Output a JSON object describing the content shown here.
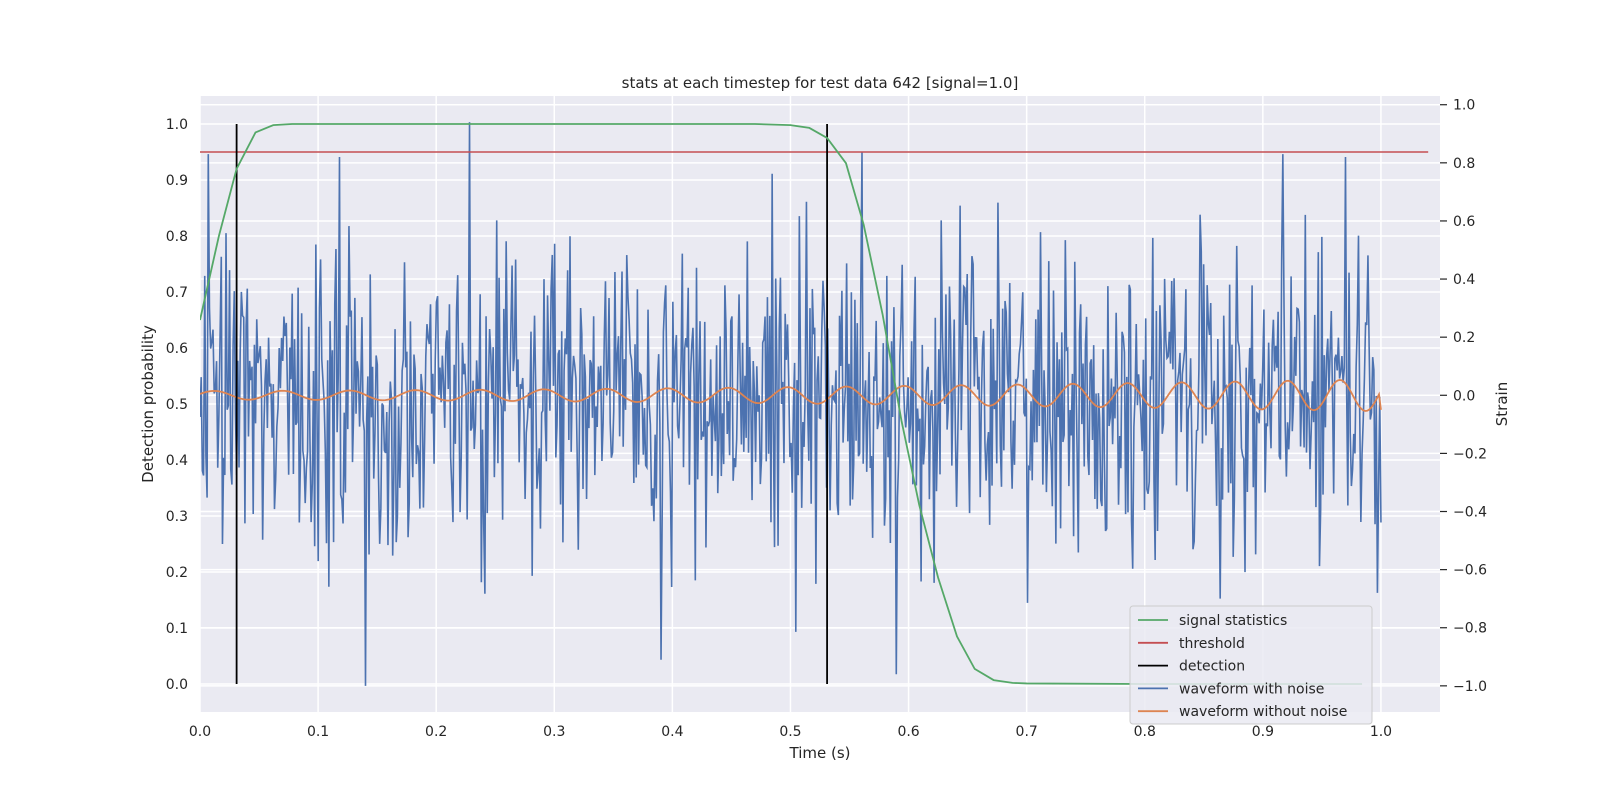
{
  "chart_data": {
    "type": "line",
    "title": "stats at each timestep for test data 642 [signal=1.0]",
    "xlabel": "Time (s)",
    "ylabel": "Detection probability",
    "y2label": "Strain",
    "xlim": [
      0.0,
      1.05
    ],
    "ylim": [
      -0.05,
      1.05
    ],
    "y2lim": [
      -1.09,
      1.03
    ],
    "xticks": [
      0.0,
      0.1,
      0.2,
      0.3,
      0.4,
      0.5,
      0.6,
      0.7,
      0.8,
      0.9,
      1.0
    ],
    "xtick_labels": [
      "0.0",
      "0.1",
      "0.2",
      "0.3",
      "0.4",
      "0.5",
      "0.6",
      "0.7",
      "0.8",
      "0.9",
      "1.0"
    ],
    "yticks": [
      0.0,
      0.1,
      0.2,
      0.3,
      0.4,
      0.5,
      0.6,
      0.7,
      0.8,
      0.9,
      1.0
    ],
    "ytick_labels": [
      "0.0",
      "0.1",
      "0.2",
      "0.3",
      "0.4",
      "0.5",
      "0.6",
      "0.7",
      "0.8",
      "0.9",
      "1.0"
    ],
    "y2ticks": [
      -1.0,
      -0.8,
      -0.6,
      -0.4,
      -0.2,
      0.0,
      0.2,
      0.4,
      0.6,
      0.8,
      1.0
    ],
    "y2tick_labels": [
      "−1.0",
      "−0.8",
      "−0.6",
      "−0.4",
      "−0.2",
      "0.0",
      "0.2",
      "0.4",
      "0.6",
      "0.8",
      "1.0"
    ],
    "grid": true,
    "legend_position": "lower right",
    "colors": {
      "signal_statistics": "#55a868",
      "threshold": "#c44e52",
      "detection": "#000000",
      "waveform_with_noise": "#4c72b0",
      "waveform_without_noise": "#dd8452",
      "plot_background": "#eaeaf2",
      "grid": "#ffffff"
    },
    "series": [
      {
        "name": "signal statistics",
        "axis": "left",
        "x": [
          0.0,
          0.016,
          0.031,
          0.047,
          0.062,
          0.078,
          0.1,
          0.2,
          0.3,
          0.4,
          0.47,
          0.5,
          0.516,
          0.531,
          0.547,
          0.562,
          0.578,
          0.594,
          0.609,
          0.625,
          0.641,
          0.656,
          0.672,
          0.688,
          0.7,
          0.8,
          0.9,
          0.984
        ],
        "y": [
          0.65,
          0.8,
          0.92,
          0.985,
          0.998,
          1.0,
          1.0,
          1.0,
          1.0,
          1.0,
          1.0,
          0.998,
          0.993,
          0.975,
          0.93,
          0.82,
          0.66,
          0.47,
          0.32,
          0.19,
          0.085,
          0.027,
          0.007,
          0.002,
          0.001,
          0.0,
          0.0,
          0.0
        ]
      },
      {
        "name": "threshold",
        "axis": "left",
        "x": [
          0.0,
          1.04
        ],
        "y": [
          0.95,
          0.95
        ]
      },
      {
        "name": "detection",
        "axis": "left",
        "type": "vlines",
        "x": [
          0.031,
          0.531
        ],
        "ymin": 0.0,
        "ymax": 1.0
      },
      {
        "name": "waveform with noise",
        "axis": "right",
        "x_start": 0.0,
        "x_end": 1.0,
        "n_points": 1000,
        "seed": 642,
        "mean": 0.0,
        "std": 0.27,
        "clip": [
          -1.0,
          1.0
        ],
        "notable_points": [
          {
            "x": 0.007,
            "y": 0.83
          },
          {
            "x": 0.118,
            "y": 0.82
          },
          {
            "x": 0.14,
            "y": -1.0
          },
          {
            "x": 0.228,
            "y": 0.94
          },
          {
            "x": 0.39,
            "y": -0.91
          },
          {
            "x": 0.59,
            "y": -0.96
          },
          {
            "x": 0.917,
            "y": 0.83
          },
          {
            "x": 0.97,
            "y": 0.82
          },
          {
            "x": 0.997,
            "y": -0.68
          }
        ]
      },
      {
        "name": "waveform without noise",
        "axis": "right",
        "formula": "chirp",
        "x_start": 0.0,
        "x_end": 1.0,
        "f0": 17,
        "f1": 23,
        "amp_start": 0.015,
        "amp_end": 0.055,
        "last_y": -0.05
      }
    ],
    "legend": [
      "signal statistics",
      "threshold",
      "detection",
      "waveform with noise",
      "waveform without noise"
    ]
  }
}
